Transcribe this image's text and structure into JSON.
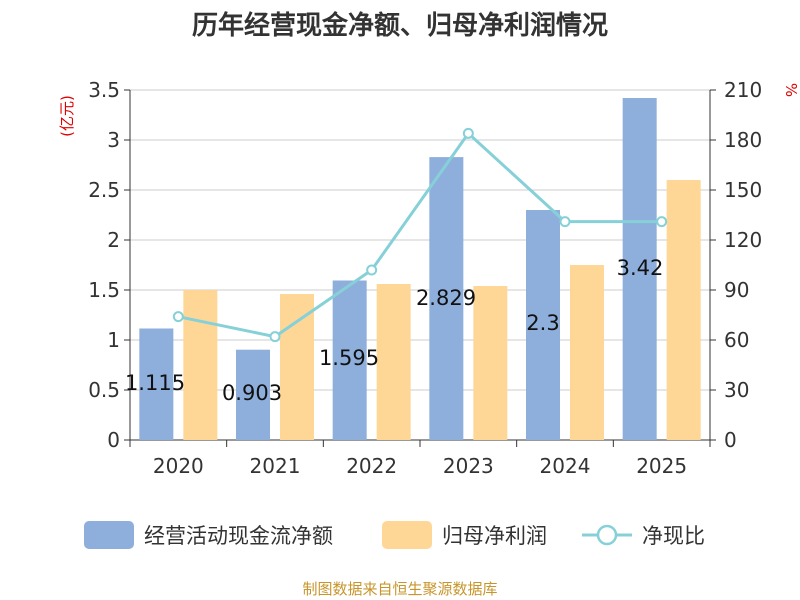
{
  "chart_data": {
    "type": "bar",
    "title": "历年经营现金净额、归母净利润情况",
    "categories": [
      "2020",
      "2021",
      "2022",
      "2023",
      "2024",
      "2025"
    ],
    "series": [
      {
        "name": "经营活动现金流净额",
        "kind": "bar",
        "axis": "left",
        "color": "#8eaedc",
        "values": [
          1.115,
          0.903,
          1.595,
          2.829,
          2.3,
          3.42
        ],
        "labels": [
          "1.115",
          "0.903",
          "1.595",
          "2.829",
          "2.3",
          "3.42"
        ]
      },
      {
        "name": "归母净利润",
        "kind": "bar",
        "axis": "left",
        "color": "#fed797",
        "values": [
          1.5,
          1.46,
          1.56,
          1.54,
          1.75,
          2.6
        ]
      },
      {
        "name": "净现比",
        "kind": "line",
        "axis": "right",
        "color": "#86d0d8",
        "values": [
          74,
          62,
          102,
          184,
          131,
          131
        ]
      }
    ],
    "left_axis": {
      "unit": "(亿元)",
      "min": 0,
      "max": 3.5,
      "ticks": [
        "0",
        "0.5",
        "1",
        "1.5",
        "2",
        "2.5",
        "3",
        "3.5"
      ]
    },
    "right_axis": {
      "unit": "%",
      "min": 0,
      "max": 210,
      "ticks": [
        "0",
        "30",
        "60",
        "90",
        "120",
        "150",
        "180",
        "210"
      ]
    },
    "grid": true,
    "legend_position": "bottom"
  },
  "source": "制图数据来自恒生聚源数据库"
}
